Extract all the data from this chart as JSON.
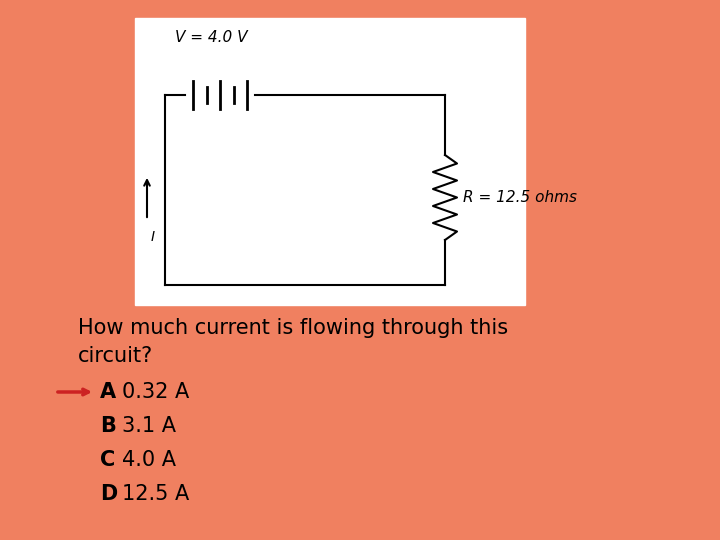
{
  "bg_color": "#F08060",
  "panel_color": "#FFFFFF",
  "question": "How much current is flowing through this\ncircuit?",
  "question_fontsize": 15,
  "options": [
    {
      "letter": "A",
      "text": "0.32 A"
    },
    {
      "letter": "B",
      "text": "3.1 A"
    },
    {
      "letter": "C",
      "text": "4.0 A"
    },
    {
      "letter": "D",
      "text": "12.5 A"
    }
  ],
  "options_fontsize": 15,
  "arrow_color": "#CC2222",
  "v_label": "V = 4.0 V",
  "r_label": "R = 12.5 ohms",
  "i_label": "I"
}
